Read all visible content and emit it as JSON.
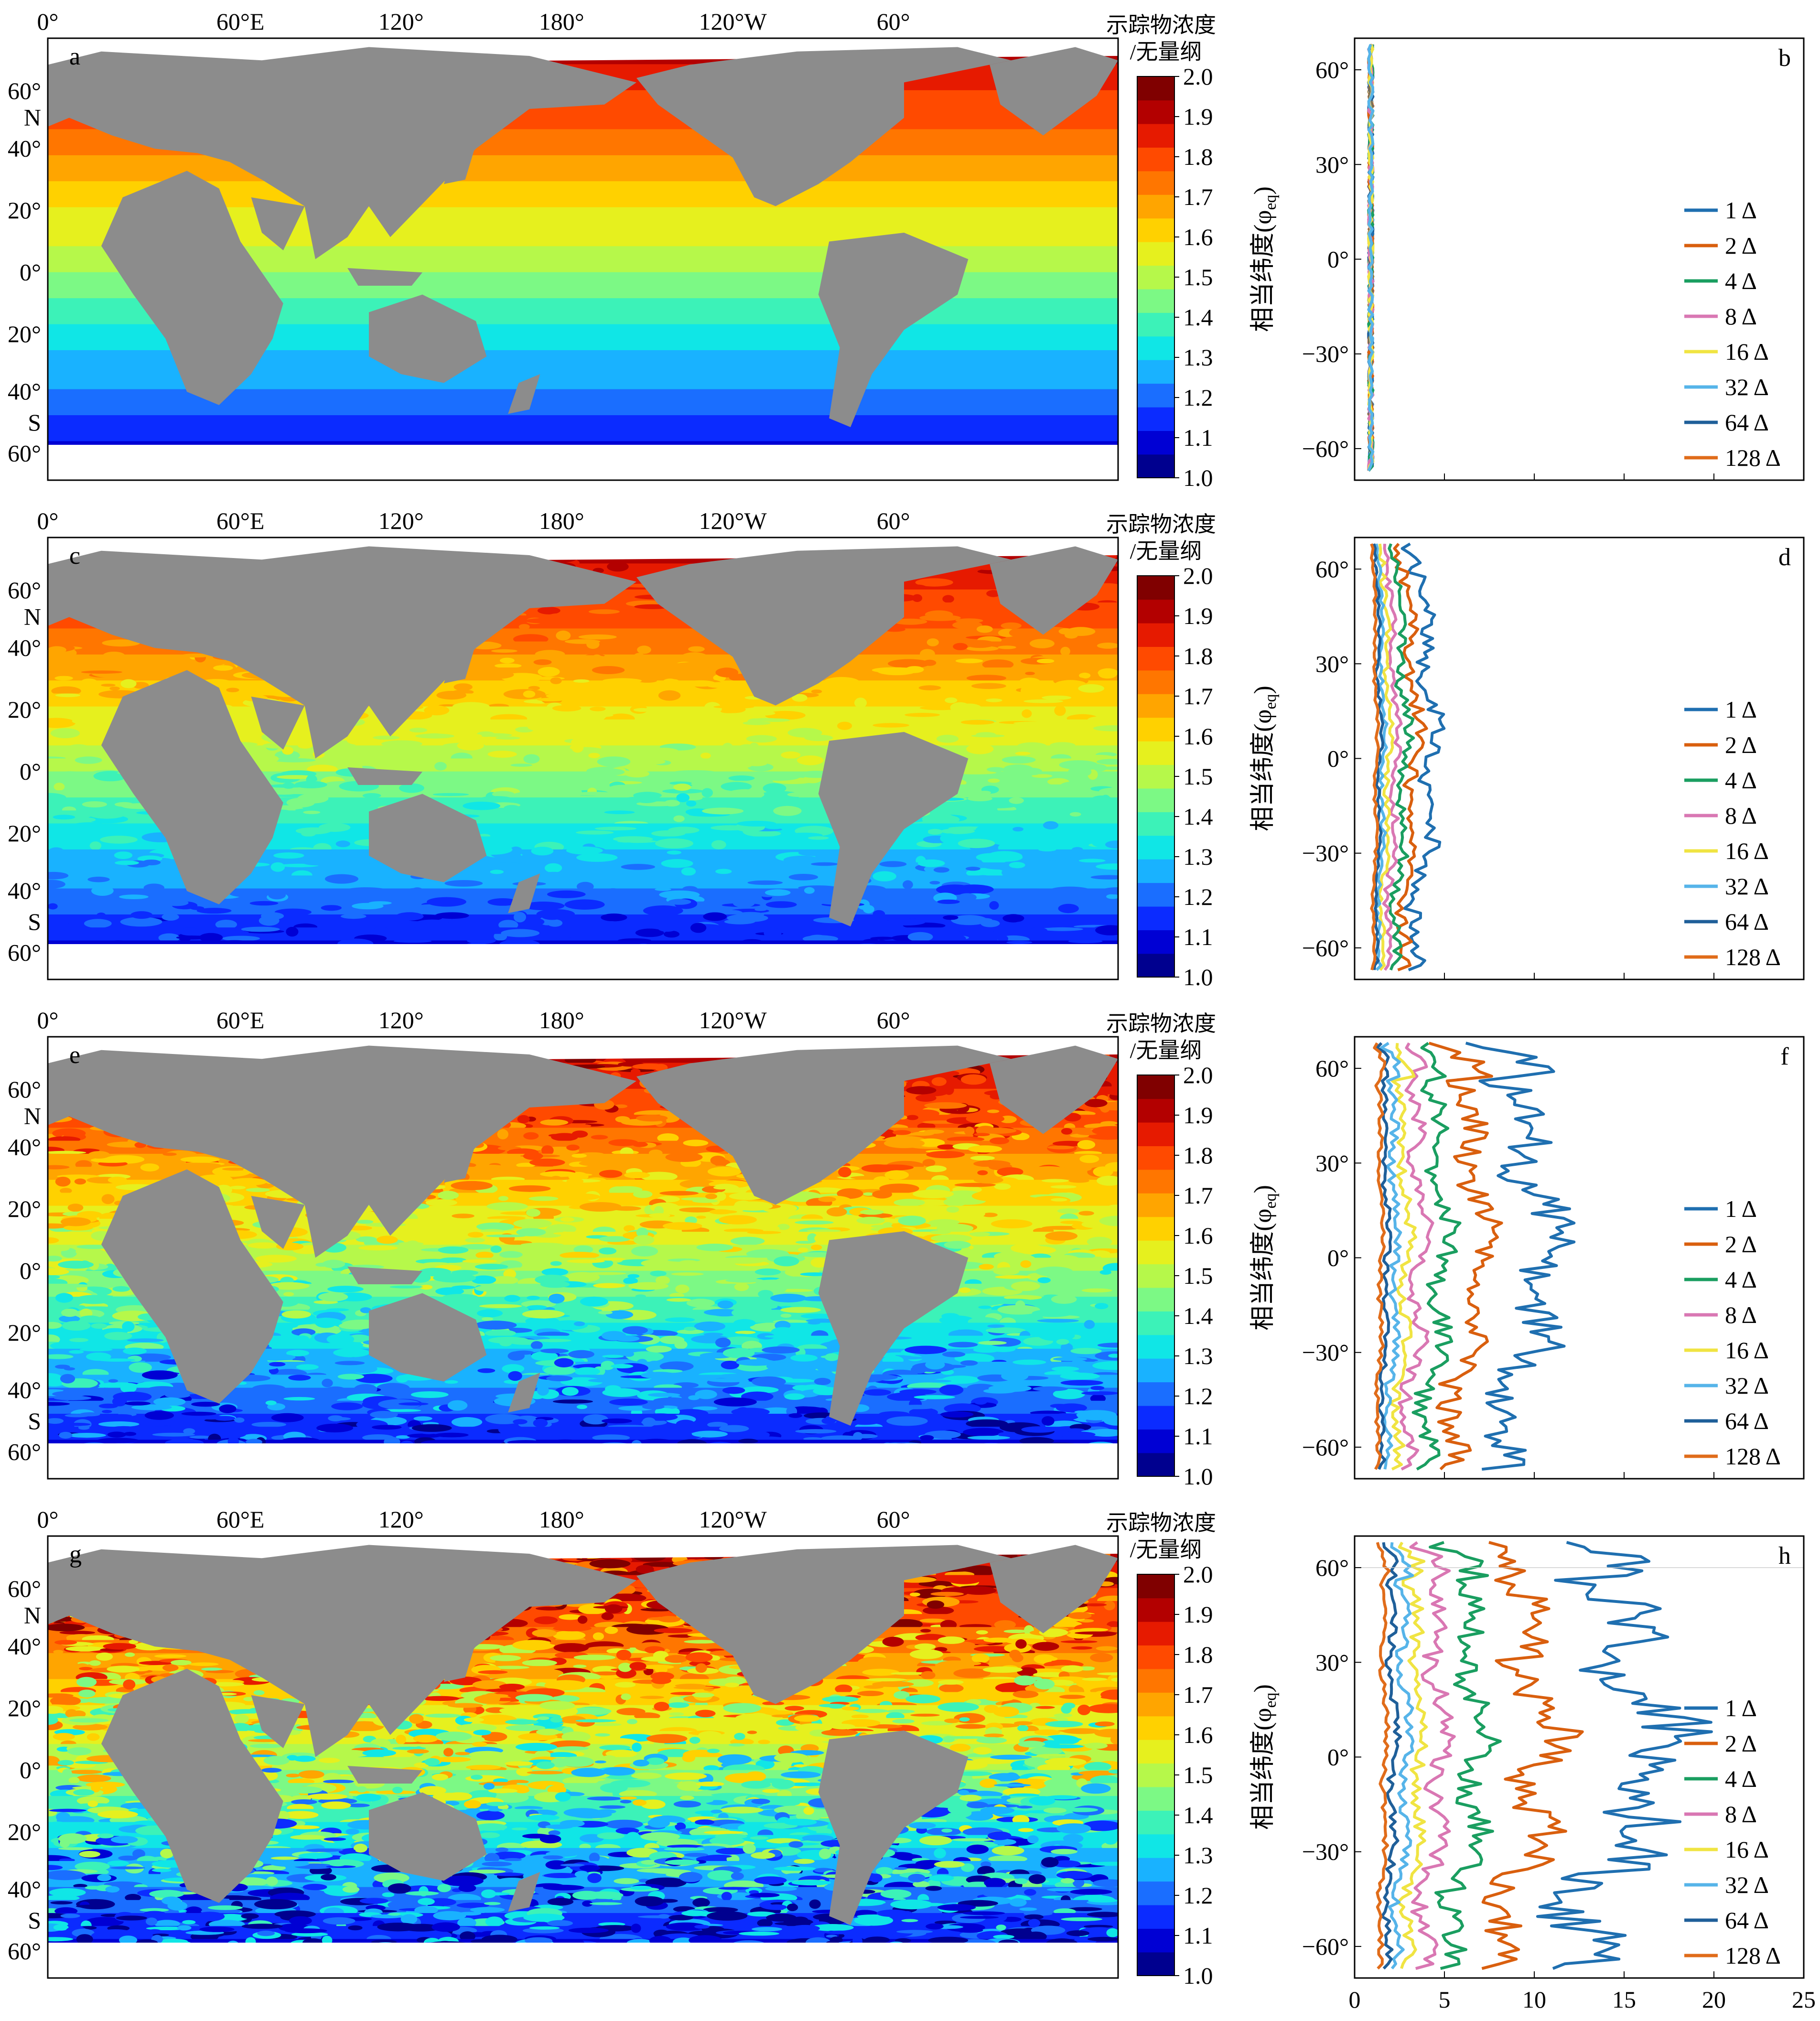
{
  "map_panels": [
    {
      "letter": "a"
    },
    {
      "letter": "c"
    },
    {
      "letter": "e"
    },
    {
      "letter": "g"
    }
  ],
  "map_lon_ticks": [
    "0°",
    "60°E",
    "120°",
    "180°",
    "120°W",
    "60°"
  ],
  "map_lat_ticks": [
    "60°",
    "N",
    "40°",
    "20°",
    "0°",
    "20°",
    "40°",
    "S",
    "60°"
  ],
  "colorbar": {
    "title_line1": "示踪物浓度",
    "title_line2": "/无量纲",
    "ticks": [
      "2.0",
      "1.9",
      "1.8",
      "1.7",
      "1.6",
      "1.5",
      "1.4",
      "1.3",
      "1.2",
      "1.1",
      "1.0"
    ],
    "colors": [
      "#00008f",
      "#0000d4",
      "#0b2bff",
      "#1a6eff",
      "#19b2ff",
      "#10e6e6",
      "#3cf2b8",
      "#7cf985",
      "#b6f84a",
      "#e6f01e",
      "#ffd100",
      "#ffa500",
      "#ff7600",
      "#ff4a00",
      "#e61a00",
      "#b30000",
      "#800000"
    ]
  },
  "profile_panels": [
    {
      "letter": "b"
    },
    {
      "letter": "d"
    },
    {
      "letter": "f"
    },
    {
      "letter": "h"
    }
  ],
  "profile_ylabel": "相当纬度(φ",
  "profile_ylabel_sub": "eq",
  "profile_ylabel_end": ")",
  "profile_yticks": [
    "60°",
    "30°",
    "0°",
    "−30°",
    "−60°"
  ],
  "profile_xticks": [
    "0",
    "5",
    "10",
    "15",
    "20",
    "25"
  ],
  "legend": [
    {
      "label": "1 Δ",
      "color": "#1f6fb0"
    },
    {
      "label": "2 Δ",
      "color": "#d95f0e"
    },
    {
      "label": "4 Δ",
      "color": "#1a9e60"
    },
    {
      "label": "8 Δ",
      "color": "#d977b3"
    },
    {
      "label": "16 Δ",
      "color": "#f0e442"
    },
    {
      "label": "32 Δ",
      "color": "#56b4e9"
    },
    {
      "label": "64 Δ",
      "color": "#1f5f99"
    },
    {
      "label": "128 Δ",
      "color": "#e06c1a"
    }
  ],
  "chart_data": [
    {
      "type": "line",
      "panel": "b",
      "xlim": [
        0,
        25
      ],
      "ylim": [
        -70,
        70
      ],
      "series_x_magnitude": [
        0.3,
        0.4,
        0.5,
        0.55,
        0.6,
        0.65,
        0.7,
        0.8,
        0.9,
        1.0,
        1.0,
        1.0,
        1.0,
        1.0
      ]
    },
    {
      "type": "line",
      "panel": "d",
      "xlim": [
        0,
        25
      ],
      "ylim": [
        -70,
        70
      ],
      "series_x_magnitude": [
        3.8,
        2.9,
        2.3,
        1.8,
        1.4,
        1.1,
        0.9,
        0.7
      ]
    },
    {
      "type": "line",
      "panel": "f",
      "xlim": [
        0,
        25
      ],
      "ylim": [
        -70,
        70
      ],
      "series_x_magnitude": [
        10.0,
        6.5,
        4.5,
        3.2,
        2.4,
        1.8,
        1.3,
        1.0
      ]
    },
    {
      "type": "line",
      "panel": "h",
      "xlim": [
        0,
        25
      ],
      "ylim": [
        -70,
        70
      ],
      "series_x_magnitude": [
        16.0,
        10.0,
        6.5,
        4.4,
        3.2,
        2.4,
        1.7,
        1.2
      ]
    }
  ]
}
